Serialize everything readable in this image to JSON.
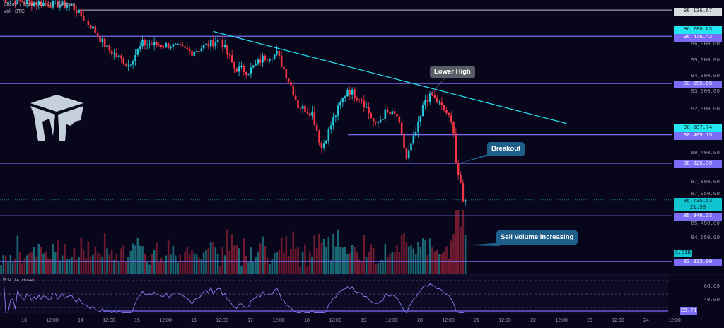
{
  "header": {
    "title": "Bitcoin / TetherUS · 1h · Binance",
    "volume_label": "Vol · BTC"
  },
  "rsi": {
    "label": "RSI (14, close)",
    "value_label": "23.71",
    "ticks": [
      "60.00",
      "40.00"
    ]
  },
  "price_labels": {
    "high_level": "98,136.67",
    "cyan_top": "96,780.63",
    "level_1": "96,476.42",
    "level_2": "93,555.85",
    "cyan_mid": "90,687.74",
    "level_3": "90,489.15",
    "level_4": "88,825.39",
    "current": "86,735.53",
    "countdown": "21:58",
    "level_5": "85,846.33",
    "level_6": "83,333.00",
    "volume": "1.81K"
  },
  "price_ticks": [
    "96,000.00",
    "95,000.00",
    "94,000.00",
    "93,000.00",
    "92,000.00",
    "89,400.00",
    "87,800.00",
    "87,050.00",
    "85,450.00",
    "84,650.00"
  ],
  "time_labels": [
    "13",
    "12:00",
    "14",
    "12:00",
    "15",
    "12:00",
    "16",
    "12:00",
    "17",
    "12:00",
    "18",
    "12:00",
    "19",
    "12:00",
    "20",
    "12:00",
    "21",
    "12:00",
    "22",
    "12:00",
    "23",
    "12:00",
    "24",
    "12:00"
  ],
  "annotations": {
    "lower_high": "Lower High",
    "breakout": "Breakout",
    "sell_volume": "Sell Volume Increasing"
  },
  "colors": {
    "up": "#26c6da",
    "down": "#f23645",
    "level": "#7b6cf6",
    "trend": "#26e0f0",
    "note_blue": "#1f5f8b",
    "note_grey": "#5a5d68"
  },
  "chart_data": {
    "type": "candlestick",
    "title": "Bitcoin / TetherUS · 1h · Binance",
    "x_unit": "hours from first candle",
    "close_path": [
      [
        0,
        98800
      ],
      [
        30,
        98400
      ],
      [
        39,
        96960
      ],
      [
        45,
        95700
      ],
      [
        54,
        94700
      ],
      [
        60,
        96000
      ],
      [
        72,
        95900
      ],
      [
        81,
        95500
      ],
      [
        90,
        96100
      ],
      [
        93,
        96300
      ],
      [
        99,
        94500
      ],
      [
        105,
        94300
      ],
      [
        111,
        95100
      ],
      [
        117,
        95400
      ],
      [
        123,
        93450
      ],
      [
        126,
        92200
      ],
      [
        132,
        91800
      ],
      [
        136,
        89700
      ],
      [
        141,
        91400
      ],
      [
        147,
        93200
      ],
      [
        153,
        92600
      ],
      [
        159,
        91000
      ],
      [
        163,
        91800
      ],
      [
        168,
        91600
      ],
      [
        172,
        89100
      ],
      [
        177,
        91000
      ],
      [
        180,
        92600
      ],
      [
        183,
        92800
      ],
      [
        189,
        91800
      ],
      [
        192,
        90800
      ],
      [
        193,
        88900
      ],
      [
        195,
        87450
      ],
      [
        196,
        86550
      ],
      [
        197,
        86735.53
      ]
    ],
    "levels": [
      98136.67,
      96476.42,
      93555.85,
      90489.15,
      88825.39,
      85846.33,
      83333.0
    ],
    "trendline": [
      [
        90,
        96780
      ],
      [
        240,
        91150
      ]
    ],
    "rsi_last": 23.71
  }
}
